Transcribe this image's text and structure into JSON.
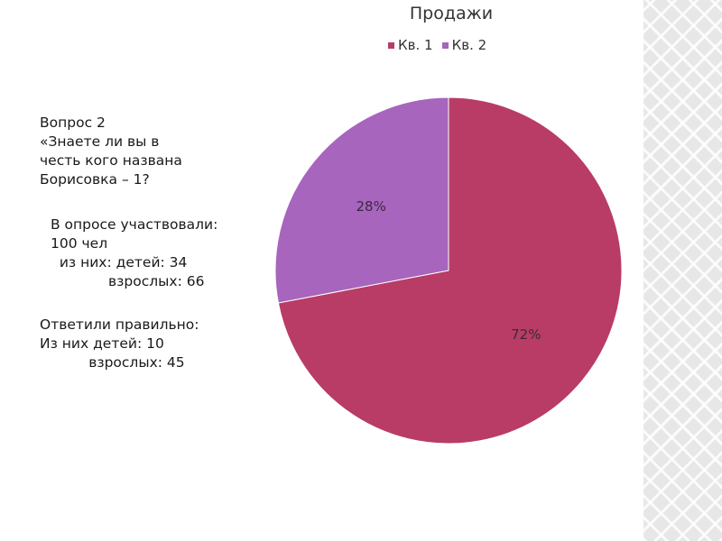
{
  "text": {
    "question": [
      "Вопрос 2",
      "«Знаете ли вы в",
      "честь кого названа",
      "Борисовка – 1?"
    ],
    "survey": [
      "В опросе участвовали:",
      "100 чел",
      "  из них: детей: 34",
      "             взрослых: 66"
    ],
    "answers": [
      "Ответили правильно:",
      "Из них детей: 10",
      "           взрослых: 45"
    ]
  },
  "chart_data": {
    "type": "pie",
    "title": "Продажи",
    "categories": [
      "Кв. 1",
      "Кв. 2"
    ],
    "values": [
      72,
      28
    ],
    "labels": [
      "72%",
      "28%"
    ],
    "colors": [
      "#b83c66",
      "#a765be"
    ],
    "legend_position": "top"
  }
}
